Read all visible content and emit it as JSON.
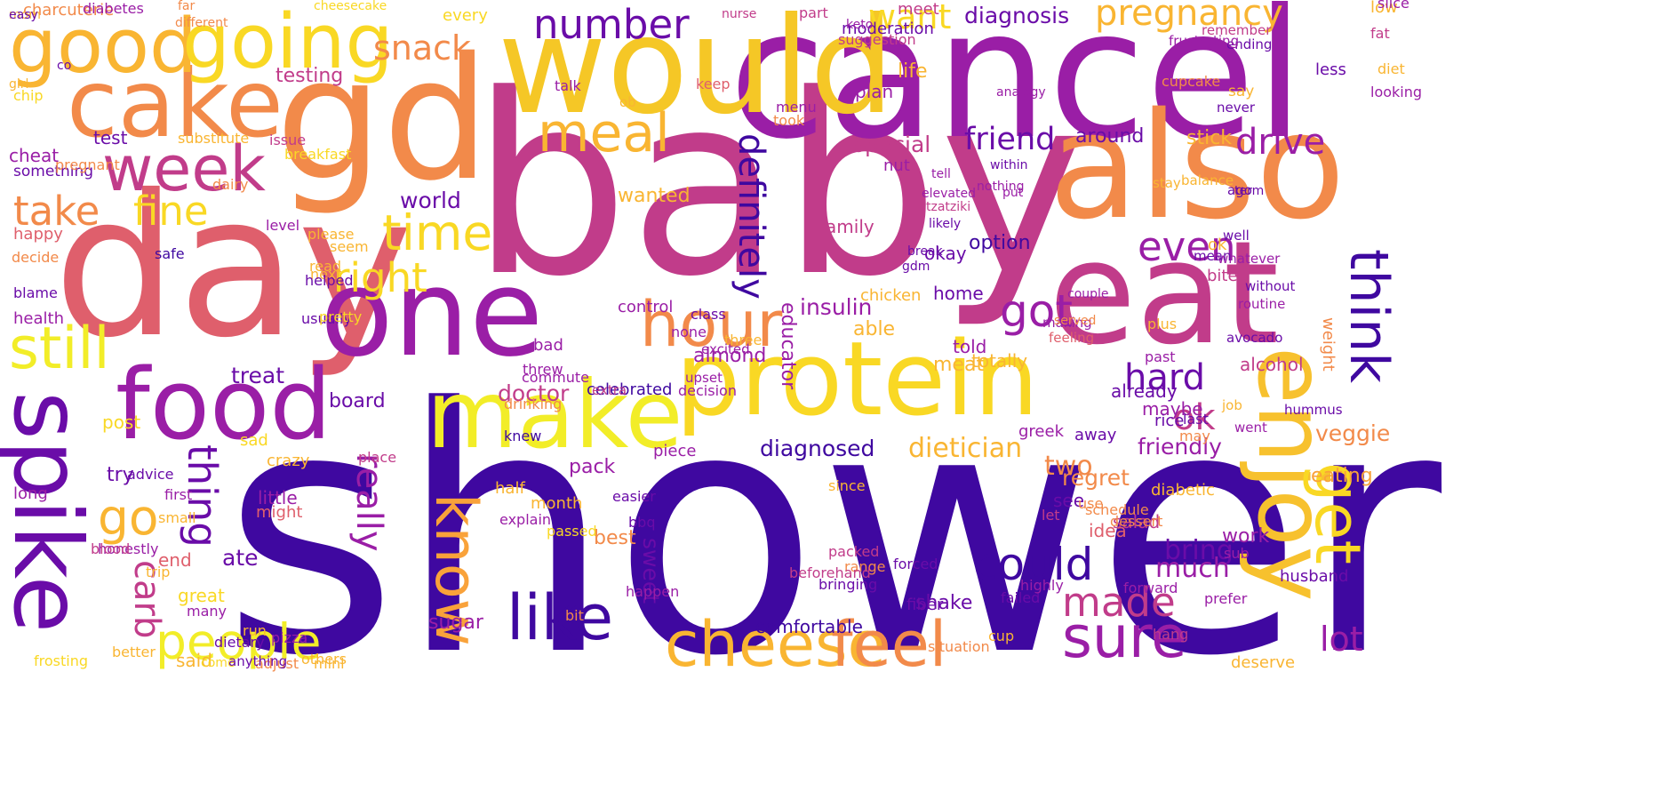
{
  "image": {
    "type": "word-cloud",
    "background": "#ffffff",
    "palette": [
      "#3f08a0",
      "#6a0ca8",
      "#9a1ea6",
      "#c13c8a",
      "#df5f6c",
      "#f28a4a",
      "#f9b532",
      "#f2ed28"
    ],
    "words": [
      {
        "text": "shower",
        "color": "#3f08a0"
      },
      {
        "text": "baby",
        "color": "#c13c8a"
      },
      {
        "text": "day",
        "color": "#df5f6c"
      },
      {
        "text": "gd",
        "color": "#f28a4a"
      },
      {
        "text": "cancel",
        "color": "#9a1ea6"
      },
      {
        "text": "would",
        "color": "#f5c726"
      },
      {
        "text": "also",
        "color": "#f28a4a"
      },
      {
        "text": "eat",
        "color": "#c13c8a"
      },
      {
        "text": "one",
        "color": "#9a1ea6"
      },
      {
        "text": "protein",
        "color": "#f9d824"
      },
      {
        "text": "make",
        "color": "#f2ed28"
      },
      {
        "text": "enjoy",
        "color": "#f7c12e"
      },
      {
        "text": "food",
        "color": "#9a1ea6"
      },
      {
        "text": "spike",
        "color": "#6a0ca8"
      },
      {
        "text": "cake",
        "color": "#f28a4a"
      },
      {
        "text": "good",
        "color": "#f9b532"
      },
      {
        "text": "going",
        "color": "#f9d824"
      },
      {
        "text": "week",
        "color": "#c13c8a"
      },
      {
        "text": "hour",
        "color": "#f28a4a"
      },
      {
        "text": "cheese",
        "color": "#f9b532"
      },
      {
        "text": "feel",
        "color": "#f28a4a"
      },
      {
        "text": "like",
        "color": "#3f08a0"
      },
      {
        "text": "sure",
        "color": "#9a1ea6"
      },
      {
        "text": "know",
        "color": "#f9a23a"
      },
      {
        "text": "people",
        "color": "#f2ed28"
      },
      {
        "text": "still",
        "color": "#f2ed28"
      },
      {
        "text": "meal",
        "color": "#f9b532"
      },
      {
        "text": "time",
        "color": "#f9d824"
      },
      {
        "text": "go",
        "color": "#f9b532"
      },
      {
        "text": "get",
        "color": "#f9d824"
      },
      {
        "text": "take",
        "color": "#f28a4a"
      },
      {
        "text": "fine",
        "color": "#f9d824"
      },
      {
        "text": "right",
        "color": "#f9d824"
      },
      {
        "text": "could",
        "color": "#3f08a0"
      },
      {
        "text": "made",
        "color": "#c13c8a"
      },
      {
        "text": "think",
        "color": "#3f08a0"
      },
      {
        "text": "got",
        "color": "#9a1ea6"
      },
      {
        "text": "even",
        "color": "#9a1ea6"
      },
      {
        "text": "drive",
        "color": "#9a1ea6"
      },
      {
        "text": "friend",
        "color": "#6a0ca8"
      },
      {
        "text": "number",
        "color": "#6a0ca8"
      },
      {
        "text": "pregnancy",
        "color": "#f9b532"
      },
      {
        "text": "want",
        "color": "#f9d824"
      },
      {
        "text": "snack",
        "color": "#f28a4a"
      },
      {
        "text": "thing",
        "color": "#6a0ca8"
      },
      {
        "text": "carb",
        "color": "#c13c8a"
      },
      {
        "text": "definitely",
        "color": "#3f08a0"
      },
      {
        "text": "hard",
        "color": "#6a0ca8"
      },
      {
        "text": "ok",
        "color": "#c13c8a"
      },
      {
        "text": "lot",
        "color": "#9a1ea6"
      },
      {
        "text": "really",
        "color": "#9a1ea6"
      },
      {
        "text": "bring",
        "color": "#6a0ca8"
      },
      {
        "text": "dietician",
        "color": "#f9b532"
      },
      {
        "text": "diagnosed",
        "color": "#3f08a0"
      },
      {
        "text": "insulin",
        "color": "#9a1ea6"
      },
      {
        "text": "doctor",
        "color": "#c13c8a"
      },
      {
        "text": "veggie",
        "color": "#f28a4a"
      },
      {
        "text": "eating",
        "color": "#f9a23a"
      },
      {
        "text": "much",
        "color": "#9a1ea6"
      },
      {
        "text": "two",
        "color": "#f28a4a"
      },
      {
        "text": "treat",
        "color": "#6a0ca8"
      },
      {
        "text": "ate",
        "color": "#6a0ca8"
      },
      {
        "text": "special",
        "color": "#c13c8a"
      },
      {
        "text": "diagnosis",
        "color": "#6a0ca8"
      },
      {
        "text": "testing",
        "color": "#c13c8a"
      },
      {
        "text": "world",
        "color": "#6a0ca8"
      },
      {
        "text": "wanted",
        "color": "#f9b532"
      },
      {
        "text": "sweet",
        "color": "#6a0ca8"
      },
      {
        "text": "best",
        "color": "#f28a4a"
      },
      {
        "text": "pack",
        "color": "#9a1ea6"
      },
      {
        "text": "board",
        "color": "#6a0ca8"
      },
      {
        "text": "meat",
        "color": "#f9b532"
      },
      {
        "text": "stick",
        "color": "#f9b532"
      },
      {
        "text": "around",
        "color": "#6a0ca8"
      },
      {
        "text": "life",
        "color": "#f9b532"
      },
      {
        "text": "plan",
        "color": "#9a1ea6"
      },
      {
        "text": "family",
        "color": "#c13c8a"
      },
      {
        "text": "okay",
        "color": "#6a0ca8"
      },
      {
        "text": "option",
        "color": "#3f08a0"
      },
      {
        "text": "home",
        "color": "#6a0ca8"
      },
      {
        "text": "able",
        "color": "#f9b532"
      },
      {
        "text": "told",
        "color": "#9a1ea6"
      },
      {
        "text": "totally",
        "color": "#f9b532"
      },
      {
        "text": "sugar",
        "color": "#9a1ea6"
      },
      {
        "text": "shake",
        "color": "#6a0ca8"
      },
      {
        "text": "comfortable",
        "color": "#3f08a0"
      },
      {
        "text": "salad",
        "color": "#c13c8a"
      },
      {
        "text": "work",
        "color": "#9a1ea6"
      },
      {
        "text": "idea",
        "color": "#df5f6c"
      },
      {
        "text": "see",
        "color": "#6a0ca8"
      },
      {
        "text": "regret",
        "color": "#f28a4a"
      },
      {
        "text": "friendly",
        "color": "#9a1ea6"
      },
      {
        "text": "maybe",
        "color": "#9a1ea6"
      },
      {
        "text": "already",
        "color": "#6a0ca8"
      },
      {
        "text": "alcohol",
        "color": "#c13c8a"
      },
      {
        "text": "cheat",
        "color": "#9a1ea6"
      },
      {
        "text": "test",
        "color": "#6a0ca8"
      },
      {
        "text": "something",
        "color": "#6a0ca8"
      },
      {
        "text": "little",
        "color": "#9a1ea6"
      },
      {
        "text": "might",
        "color": "#df5f6c"
      },
      {
        "text": "try",
        "color": "#6a0ca8"
      },
      {
        "text": "end",
        "color": "#df5f6c"
      },
      {
        "text": "great",
        "color": "#f9d824"
      },
      {
        "text": "said",
        "color": "#f9b532"
      },
      {
        "text": "many",
        "color": "#9a1ea6"
      },
      {
        "text": "health",
        "color": "#9a1ea6"
      },
      {
        "text": "long",
        "color": "#9a1ea6"
      },
      {
        "text": "happy",
        "color": "#df5f6c"
      },
      {
        "text": "post",
        "color": "#f9d824"
      },
      {
        "text": "sad",
        "color": "#f9d824"
      },
      {
        "text": "crazy",
        "color": "#f9b532"
      },
      {
        "text": "bad",
        "color": "#9a1ea6"
      },
      {
        "text": "celebrated",
        "color": "#3f08a0"
      },
      {
        "text": "half",
        "color": "#f9b532"
      },
      {
        "text": "month",
        "color": "#f9b532"
      },
      {
        "text": "control",
        "color": "#9a1ea6"
      },
      {
        "text": "almond",
        "color": "#9a1ea6"
      },
      {
        "text": "piece",
        "color": "#9a1ea6"
      },
      {
        "text": "educator",
        "color": "#9a1ea6"
      },
      {
        "text": "fiber",
        "color": "#6a0ca8"
      },
      {
        "text": "diabetic",
        "color": "#f9b532"
      },
      {
        "text": "husband",
        "color": "#6a0ca8"
      },
      {
        "text": "deserve",
        "color": "#f9b532"
      },
      {
        "text": "nut",
        "color": "#9a1ea6"
      },
      {
        "text": "chicken",
        "color": "#f9b532"
      },
      {
        "text": "away",
        "color": "#6a0ca8"
      },
      {
        "text": "greek",
        "color": "#9a1ea6"
      },
      {
        "text": "bite",
        "color": "#c13c8a"
      },
      {
        "text": "ok",
        "color": "#f9b532"
      },
      {
        "text": "rice",
        "color": "#6a0ca8"
      },
      {
        "text": "weight",
        "color": "#f28a4a"
      },
      {
        "text": "low",
        "color": "#f9b532"
      },
      {
        "text": "fat",
        "color": "#c13c8a"
      },
      {
        "text": "slice",
        "color": "#9a1ea6"
      },
      {
        "text": "diet",
        "color": "#f9b532"
      },
      {
        "text": "looking",
        "color": "#9a1ea6"
      },
      {
        "text": "less",
        "color": "#6a0ca8"
      },
      {
        "text": "say",
        "color": "#f9b532"
      },
      {
        "text": "cupcake",
        "color": "#f28a4a"
      },
      {
        "text": "charcuterie",
        "color": "#f28a4a"
      },
      {
        "text": "diabetes",
        "color": "#9a1ea6"
      },
      {
        "text": "every",
        "color": "#f9d824"
      },
      {
        "text": "meet",
        "color": "#c13c8a"
      },
      {
        "text": "part",
        "color": "#c13c8a"
      },
      {
        "text": "moderation",
        "color": "#6a0ca8"
      },
      {
        "text": "suggestion",
        "color": "#c13c8a"
      },
      {
        "text": "menu",
        "color": "#9a1ea6"
      },
      {
        "text": "took",
        "color": "#f28a4a"
      },
      {
        "text": "ob",
        "color": "#f9b532"
      },
      {
        "text": "keep",
        "color": "#df5f6c"
      },
      {
        "text": "talk",
        "color": "#9a1ea6"
      },
      {
        "text": "substitute",
        "color": "#f9b532"
      },
      {
        "text": "breakfast",
        "color": "#f9d824"
      },
      {
        "text": "dairy",
        "color": "#f28a4a"
      },
      {
        "text": "chip",
        "color": "#f9d824"
      },
      {
        "text": "pregnant",
        "color": "#f28a4a"
      },
      {
        "text": "issue",
        "color": "#c13c8a"
      },
      {
        "text": "decide",
        "color": "#f28a4a"
      },
      {
        "text": "blame",
        "color": "#6a0ca8"
      },
      {
        "text": "safe",
        "color": "#3f08a0"
      },
      {
        "text": "usually",
        "color": "#6a0ca8"
      },
      {
        "text": "level",
        "color": "#9a1ea6"
      },
      {
        "text": "please",
        "color": "#f9b532"
      },
      {
        "text": "seem",
        "color": "#f9b532"
      },
      {
        "text": "read",
        "color": "#f9b532"
      },
      {
        "text": "next",
        "color": "#f9b532"
      },
      {
        "text": "pretty",
        "color": "#f9d824"
      },
      {
        "text": "helped",
        "color": "#6a0ca8"
      },
      {
        "text": "class",
        "color": "#6a0ca8"
      },
      {
        "text": "three",
        "color": "#f9b532"
      },
      {
        "text": "none",
        "color": "#9a1ea6"
      },
      {
        "text": "excited",
        "color": "#9a1ea6"
      },
      {
        "text": "decision",
        "color": "#9a1ea6"
      },
      {
        "text": "upset",
        "color": "#9a1ea6"
      },
      {
        "text": "extra",
        "color": "#c13c8a"
      },
      {
        "text": "threw",
        "color": "#9a1ea6"
      },
      {
        "text": "knew",
        "color": "#3f08a0"
      },
      {
        "text": "drinking",
        "color": "#f28a4a"
      },
      {
        "text": "commute",
        "color": "#9a1ea6"
      },
      {
        "text": "place",
        "color": "#c13c8a"
      },
      {
        "text": "first",
        "color": "#9a1ea6"
      },
      {
        "text": "advice",
        "color": "#6a0ca8"
      },
      {
        "text": "small",
        "color": "#f9b532"
      },
      {
        "text": "honestly",
        "color": "#9a1ea6"
      },
      {
        "text": "blood",
        "color": "#c13c8a"
      },
      {
        "text": "better",
        "color": "#f9b532"
      },
      {
        "text": "frosting",
        "color": "#f9d824"
      },
      {
        "text": "mini",
        "color": "#f9b532"
      },
      {
        "text": "adjust",
        "color": "#f28a4a"
      },
      {
        "text": "come",
        "color": "#f9d824"
      },
      {
        "text": "others",
        "color": "#f9b532"
      },
      {
        "text": "pizza",
        "color": "#9a1ea6"
      },
      {
        "text": "run",
        "color": "#f9b532"
      },
      {
        "text": "dietary",
        "color": "#6a0ca8"
      },
      {
        "text": "anything",
        "color": "#6a0ca8"
      },
      {
        "text": "trip",
        "color": "#f9b532"
      },
      {
        "text": "explain",
        "color": "#9a1ea6"
      },
      {
        "text": "passed",
        "color": "#f9d824"
      },
      {
        "text": "happen",
        "color": "#9a1ea6"
      },
      {
        "text": "easier",
        "color": "#6a0ca8"
      },
      {
        "text": "bbq",
        "color": "#6a0ca8"
      },
      {
        "text": "bit",
        "color": "#f28a4a"
      },
      {
        "text": "range",
        "color": "#f28a4a"
      },
      {
        "text": "since",
        "color": "#f9b532"
      },
      {
        "text": "beforehand",
        "color": "#c13c8a"
      },
      {
        "text": "packed",
        "color": "#c13c8a"
      },
      {
        "text": "bringing",
        "color": "#6a0ca8"
      },
      {
        "text": "situation",
        "color": "#f28a4a"
      },
      {
        "text": "cup",
        "color": "#f9b532"
      },
      {
        "text": "failed",
        "color": "#6a0ca8"
      },
      {
        "text": "forced",
        "color": "#6a0ca8"
      },
      {
        "text": "highly",
        "color": "#9a1ea6"
      },
      {
        "text": "let",
        "color": "#c13c8a"
      },
      {
        "text": "use",
        "color": "#f28a4a"
      },
      {
        "text": "schedule",
        "color": "#f28a4a"
      },
      {
        "text": "dessert",
        "color": "#f28a4a"
      },
      {
        "text": "forward",
        "color": "#9a1ea6"
      },
      {
        "text": "prefer",
        "color": "#9a1ea6"
      },
      {
        "text": "hang",
        "color": "#c13c8a"
      },
      {
        "text": "sub",
        "color": "#9a1ea6"
      },
      {
        "text": "plus",
        "color": "#f9b532"
      },
      {
        "text": "past",
        "color": "#9a1ea6"
      },
      {
        "text": "may",
        "color": "#f28a4a"
      },
      {
        "text": "last",
        "color": "#6a0ca8"
      },
      {
        "text": "job",
        "color": "#f9b532"
      },
      {
        "text": "went",
        "color": "#9a1ea6"
      },
      {
        "text": "hummus",
        "color": "#6a0ca8"
      },
      {
        "text": "avocado",
        "color": "#6a0ca8"
      },
      {
        "text": "routine",
        "color": "#9a1ea6"
      },
      {
        "text": "without",
        "color": "#6a0ca8"
      },
      {
        "text": "whatever",
        "color": "#9a1ea6"
      },
      {
        "text": "mean",
        "color": "#6a0ca8"
      },
      {
        "text": "well",
        "color": "#6a0ca8"
      },
      {
        "text": "ago",
        "color": "#6a0ca8"
      },
      {
        "text": "term",
        "color": "#6a0ca8"
      },
      {
        "text": "balance",
        "color": "#f9b532"
      },
      {
        "text": "stay",
        "color": "#f9b532"
      },
      {
        "text": "never",
        "color": "#6a0ca8"
      },
      {
        "text": "ending",
        "color": "#6a0ca8"
      },
      {
        "text": "remember",
        "color": "#c13c8a"
      },
      {
        "text": "frustrating",
        "color": "#9a1ea6"
      },
      {
        "text": "feeling",
        "color": "#df5f6c"
      },
      {
        "text": "making",
        "color": "#9a1ea6"
      },
      {
        "text": "served",
        "color": "#f28a4a"
      },
      {
        "text": "couple",
        "color": "#9a1ea6"
      },
      {
        "text": "likely",
        "color": "#6a0ca8"
      },
      {
        "text": "tzatziki",
        "color": "#c13c8a"
      },
      {
        "text": "elevated",
        "color": "#9a1ea6"
      },
      {
        "text": "tell",
        "color": "#9a1ea6"
      },
      {
        "text": "gdm",
        "color": "#6a0ca8"
      },
      {
        "text": "break",
        "color": "#6a0ca8"
      },
      {
        "text": "nothing",
        "color": "#9a1ea6"
      },
      {
        "text": "within",
        "color": "#6a0ca8"
      },
      {
        "text": "put",
        "color": "#9a1ea6"
      },
      {
        "text": "analogy",
        "color": "#9a1ea6"
      },
      {
        "text": "girl",
        "color": "#f9b532"
      },
      {
        "text": "co",
        "color": "#6a0ca8"
      },
      {
        "text": "far",
        "color": "#f28a4a"
      },
      {
        "text": "different",
        "color": "#f28a4a"
      },
      {
        "text": "cheesecake",
        "color": "#f9d824"
      },
      {
        "text": "nurse",
        "color": "#c13c8a"
      },
      {
        "text": "keto",
        "color": "#9a1ea6"
      },
      {
        "text": "mom",
        "color": "#f9b532"
      },
      {
        "text": "easy",
        "color": "#6a0ca8"
      }
    ]
  }
}
